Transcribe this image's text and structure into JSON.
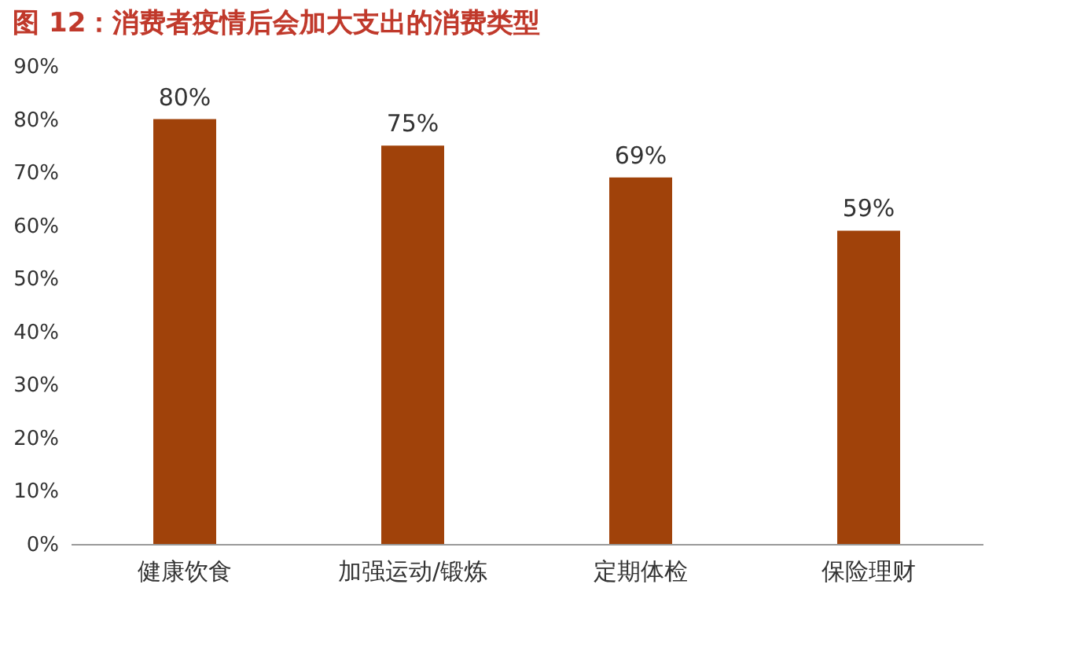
{
  "chart_data": {
    "type": "bar",
    "title": "图 12：消费者疫情后会加大支出的消费类型",
    "categories": [
      "健康饮食",
      "加强运动/锻炼",
      "定期体检",
      "保险理财"
    ],
    "values": [
      80,
      75,
      69,
      59
    ],
    "color": "#a0420a",
    "value_labels": [
      "80%",
      "75%",
      "69%",
      "59%"
    ],
    "ylim": [
      0,
      90
    ],
    "yticks": [
      {
        "value": 0,
        "label": "0%"
      },
      {
        "value": 10,
        "label": "10%"
      },
      {
        "value": 20,
        "label": "20%"
      },
      {
        "value": 30,
        "label": "30%"
      },
      {
        "value": 40,
        "label": "40%"
      },
      {
        "value": 50,
        "label": "50%"
      },
      {
        "value": 60,
        "label": "60%"
      },
      {
        "value": 70,
        "label": "70%"
      },
      {
        "value": 80,
        "label": "80%"
      },
      {
        "value": 90,
        "label": "90%"
      }
    ],
    "grid": false
  }
}
